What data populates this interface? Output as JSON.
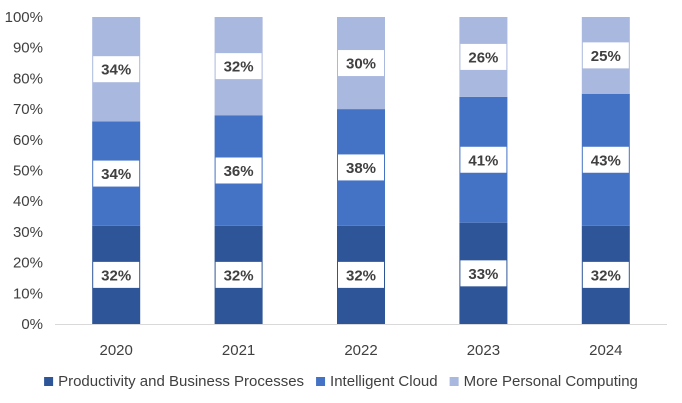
{
  "chart_data": {
    "type": "bar",
    "stacked": true,
    "categories": [
      "2020",
      "2021",
      "2022",
      "2023",
      "2024"
    ],
    "series": [
      {
        "name": "Productivity and Business Processes",
        "values": [
          32,
          32,
          32,
          33,
          32
        ],
        "labels": [
          "32%",
          "32%",
          "32%",
          "33%",
          "32%"
        ],
        "color": "#2e5597"
      },
      {
        "name": "Intelligent Cloud",
        "values": [
          34,
          36,
          38,
          41,
          43
        ],
        "labels": [
          "34%",
          "36%",
          "38%",
          "41%",
          "43%"
        ],
        "color": "#4472c4"
      },
      {
        "name": "More Personal Computing",
        "values": [
          34,
          32,
          30,
          26,
          25
        ],
        "labels": [
          "34%",
          "32%",
          "30%",
          "26%",
          "25%"
        ],
        "color": "#a9b8de"
      }
    ],
    "ylim": [
      0,
      100
    ],
    "yticks": [
      "0%",
      "10%",
      "20%",
      "30%",
      "40%",
      "50%",
      "60%",
      "70%",
      "80%",
      "90%",
      "100%"
    ],
    "legend_position": "bottom",
    "grid": false
  }
}
